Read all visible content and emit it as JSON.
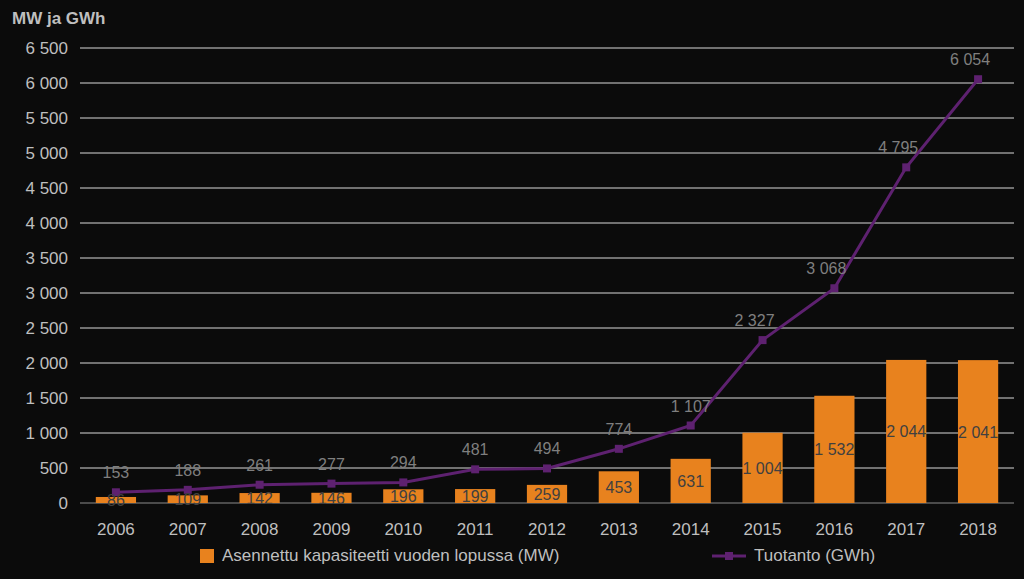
{
  "chart_data": {
    "type": "bar",
    "ylabel": "MW ja GWh",
    "categories": [
      "2006",
      "2007",
      "2008",
      "2009",
      "2010",
      "2011",
      "2012",
      "2013",
      "2014",
      "2015",
      "2016",
      "2017",
      "2018"
    ],
    "series": [
      {
        "name": "Asennettu kapasiteetti vuoden lopussa (MW)",
        "type": "bar",
        "color": "#e8821e",
        "values": [
          86,
          109,
          142,
          146,
          196,
          199,
          259,
          453,
          631,
          1004,
          1532,
          2044,
          2041
        ],
        "value_labels": [
          "86",
          "109",
          "142",
          "146",
          "196",
          "199",
          "259",
          "453",
          "631",
          "1 004",
          "1 532",
          "2 044",
          "2 041"
        ]
      },
      {
        "name": "Tuotanto (GWh)",
        "type": "line",
        "color": "#5e2170",
        "marker": "square",
        "values": [
          153,
          188,
          261,
          277,
          294,
          481,
          494,
          774,
          1107,
          2327,
          3068,
          4795,
          6054
        ],
        "value_labels": [
          "153",
          "188",
          "261",
          "277",
          "294",
          "481",
          "494",
          "774",
          "1 107",
          "2 327",
          "3 068",
          "4 795",
          "6 054"
        ]
      }
    ],
    "ylim": [
      0,
      6500
    ],
    "yticks": [
      {
        "value": 0,
        "label": "0"
      },
      {
        "value": 500,
        "label": "500"
      },
      {
        "value": 1000,
        "label": "1 000"
      },
      {
        "value": 1500,
        "label": "1 500"
      },
      {
        "value": 2000,
        "label": "2 000"
      },
      {
        "value": 2500,
        "label": "2 500"
      },
      {
        "value": 3000,
        "label": "3 000"
      },
      {
        "value": 3500,
        "label": "3 500"
      },
      {
        "value": 4000,
        "label": "4 000"
      },
      {
        "value": 4500,
        "label": "4 500"
      },
      {
        "value": 5000,
        "label": "5 000"
      },
      {
        "value": 5500,
        "label": "5 500"
      },
      {
        "value": 6000,
        "label": "6 000"
      },
      {
        "value": 6500,
        "label": "6 500"
      }
    ],
    "grid": true,
    "legend": "bottom",
    "data_labels": true
  }
}
